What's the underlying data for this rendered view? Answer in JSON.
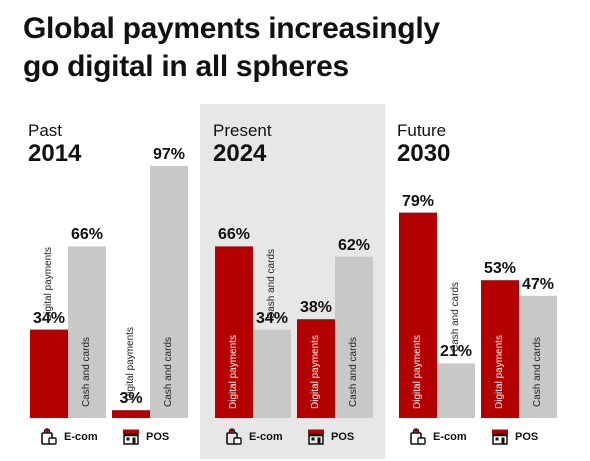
{
  "title": "Global payments increasingly\ngo digital in all spheres",
  "colors": {
    "digital": "#b30000",
    "cash": "#c8c8c8",
    "highlight_panel": "#e7e7e7"
  },
  "chart_data": {
    "type": "bar",
    "ylim": [
      0,
      100
    ],
    "legend": "none",
    "grid": false,
    "series_labels": [
      "Digital payments",
      "Cash and cards"
    ],
    "panels": [
      {
        "era": "Past",
        "year": "2014",
        "groups": [
          {
            "category": "E-com",
            "icon": "shopping-bag-icon",
            "digital": 34,
            "cash": 66,
            "digital_label": "34%",
            "cash_label": "66%"
          },
          {
            "category": "POS",
            "icon": "storefront-icon",
            "digital": 3,
            "cash": 97,
            "digital_label": "3%",
            "cash_label": "97%"
          }
        ]
      },
      {
        "era": "Present",
        "year": "2024",
        "highlighted": true,
        "groups": [
          {
            "category": "E-com",
            "icon": "shopping-bag-icon",
            "digital": 66,
            "cash": 34,
            "digital_label": "66%",
            "cash_label": "34%"
          },
          {
            "category": "POS",
            "icon": "storefront-icon",
            "digital": 38,
            "cash": 62,
            "digital_label": "38%",
            "cash_label": "62%"
          }
        ]
      },
      {
        "era": "Future",
        "year": "2030",
        "groups": [
          {
            "category": "E-com",
            "icon": "shopping-bag-icon",
            "digital": 79,
            "cash": 21,
            "digital_label": "79%",
            "cash_label": "21%"
          },
          {
            "category": "POS",
            "icon": "storefront-icon",
            "digital": 53,
            "cash": 47,
            "digital_label": "53%",
            "cash_label": "47%"
          }
        ]
      }
    ]
  }
}
